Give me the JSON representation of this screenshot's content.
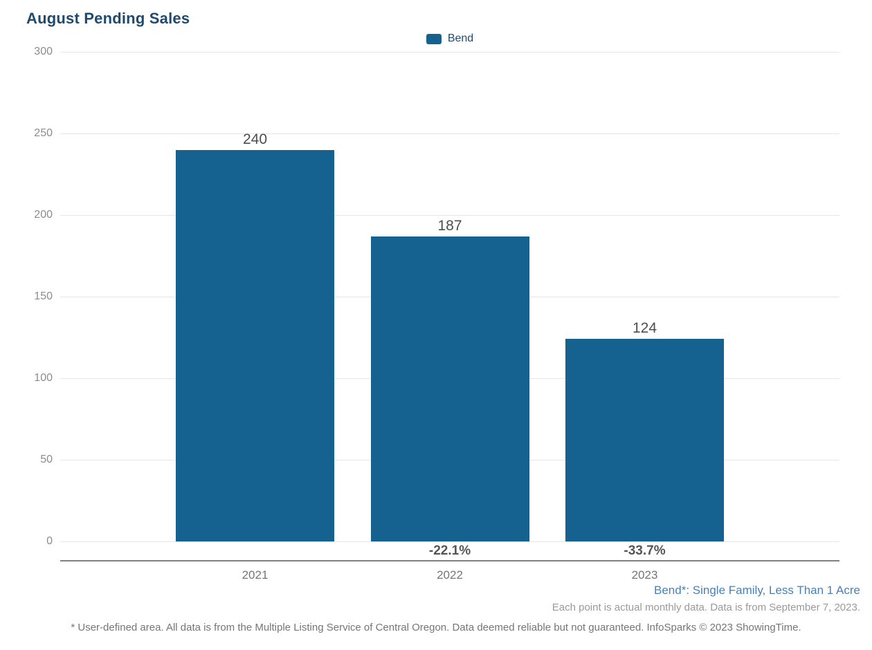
{
  "title": "August Pending Sales",
  "legend": {
    "label": "Bend"
  },
  "chart_data": {
    "type": "bar",
    "title": "August Pending Sales",
    "categories": [
      "2021",
      "2022",
      "2023"
    ],
    "values": [
      240,
      187,
      124
    ],
    "pct_change": [
      null,
      "-22.1%",
      "-33.7%"
    ],
    "series": [
      {
        "name": "Bend",
        "color": "#15618f",
        "values": [
          240,
          187,
          124
        ]
      }
    ],
    "ylim": [
      0,
      300
    ],
    "yticks": [
      0,
      50,
      100,
      150,
      200,
      250,
      300
    ],
    "grid": true,
    "legend_position": "top-center"
  },
  "footnotes": {
    "series_note": "Bend*: Single Family, Less Than 1 Acre",
    "data_note": "Each point is actual monthly data. Data is from September 7, 2023.",
    "disclaimer": "* User-defined area. All data is from the Multiple Listing Service of Central Oregon. Data deemed reliable but not guaranteed. InfoSparks © 2023 ShowingTime."
  },
  "colors": {
    "bar": "#15618f",
    "title": "#1d4a6e",
    "legend_label": "#1d4a6e",
    "gridline": "#e6e6e6",
    "tick_label": "#8c8c8c",
    "value_label": "#4d4d4d",
    "pct_label": "#555555",
    "year_label": "#757575",
    "axis_line": "#808080",
    "series_note": "#4a7fb4",
    "data_note": "#9a9a9a",
    "disclaimer": "#757575"
  }
}
